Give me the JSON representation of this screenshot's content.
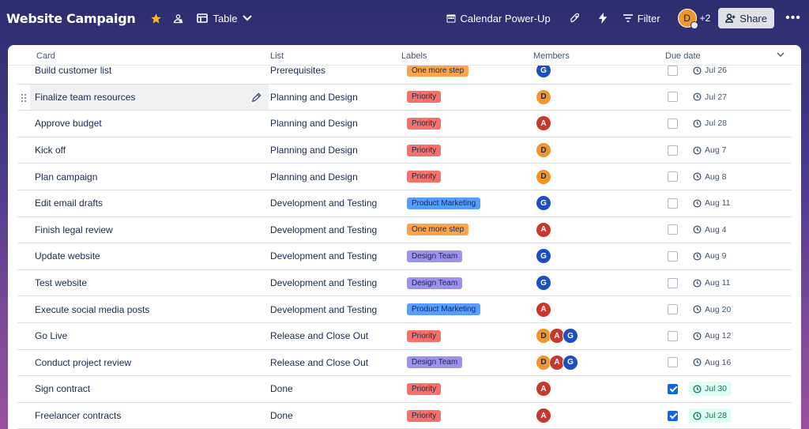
{
  "header": {
    "board_title": "Website Campaign",
    "view_label": "Table",
    "power_up_label": "Calendar Power-Up",
    "filter_label": "Filter",
    "member_initial": "D",
    "extra_members": "+2",
    "share_label": "Share"
  },
  "colors": {
    "accent": "#0c66e4",
    "star": "#f5b82e",
    "priority": "#f87168",
    "one_more_step": "#fca44a",
    "product_marketing": "#579dff",
    "design_team": "#9f8fef"
  },
  "table": {
    "columns": [
      "Card",
      "List",
      "Labels",
      "Members",
      "Due date"
    ],
    "rows": [
      {
        "card": "Build customer list",
        "list": "Prerequisites",
        "label": "One more step",
        "label_color": "orange",
        "members": [
          "G"
        ],
        "done": false,
        "due": "Jul 26"
      },
      {
        "card": "Finalize team resources",
        "list": "Planning and Design",
        "label": "Priority",
        "label_color": "red",
        "members": [
          "D"
        ],
        "done": false,
        "due": "Jul 27"
      },
      {
        "card": "Approve budget",
        "list": "Planning and Design",
        "label": "Priority",
        "label_color": "red",
        "members": [
          "A"
        ],
        "done": false,
        "due": "Jul 28"
      },
      {
        "card": "Kick off",
        "list": "Planning and Design",
        "label": "Priority",
        "label_color": "red",
        "members": [
          "D"
        ],
        "done": false,
        "due": "Aug 7"
      },
      {
        "card": "Plan campaign",
        "list": "Planning and Design",
        "label": "Priority",
        "label_color": "red",
        "members": [
          "D"
        ],
        "done": false,
        "due": "Aug 8"
      },
      {
        "card": "Edit email drafts",
        "list": "Development and Testing",
        "label": "Product Marketing",
        "label_color": "blue",
        "members": [
          "G"
        ],
        "done": false,
        "due": "Aug 11"
      },
      {
        "card": "Finish legal review",
        "list": "Development and Testing",
        "label": "One more step",
        "label_color": "orange",
        "members": [
          "A"
        ],
        "done": false,
        "due": "Aug 4"
      },
      {
        "card": "Update website",
        "list": "Development and Testing",
        "label": "Design Team",
        "label_color": "purple",
        "members": [
          "G"
        ],
        "done": false,
        "due": "Aug 9"
      },
      {
        "card": "Test website",
        "list": "Development and Testing",
        "label": "Design Team",
        "label_color": "purple",
        "members": [
          "G"
        ],
        "done": false,
        "due": "Aug 11"
      },
      {
        "card": "Execute social media posts",
        "list": "Development and Testing",
        "label": "Product Marketing",
        "label_color": "blue",
        "members": [
          "A"
        ],
        "done": false,
        "due": "Aug 20"
      },
      {
        "card": "Go Live",
        "list": "Release and Close Out",
        "label": "Priority",
        "label_color": "red",
        "members": [
          "D",
          "A",
          "G"
        ],
        "done": false,
        "due": "Aug 12"
      },
      {
        "card": "Conduct project review",
        "list": "Release and Close Out",
        "label": "Design Team",
        "label_color": "purple",
        "members": [
          "D",
          "A",
          "G"
        ],
        "done": false,
        "due": "Aug 16"
      },
      {
        "card": "Sign contract",
        "list": "Done",
        "label": "Priority",
        "label_color": "red",
        "members": [
          "A"
        ],
        "done": true,
        "due": "Jul 30"
      },
      {
        "card": "Freelancer contracts",
        "list": "Done",
        "label": "Priority",
        "label_color": "red",
        "members": [
          "A"
        ],
        "done": true,
        "due": "Jul 28"
      }
    ]
  }
}
